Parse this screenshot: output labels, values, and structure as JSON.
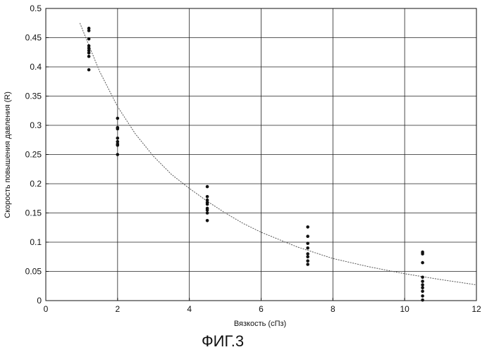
{
  "chart_data": {
    "type": "scatter",
    "xlabel": "Вязкость (сПз)",
    "ylabel": "Скорость повышения давления (R)",
    "xlim": [
      0,
      12
    ],
    "ylim": [
      0,
      0.5
    ],
    "x_ticks": [
      0,
      2,
      4,
      6,
      8,
      10,
      12
    ],
    "y_ticks": [
      0,
      0.05,
      0.1,
      0.15,
      0.2,
      0.25,
      0.3,
      0.35,
      0.4,
      0.45,
      0.5
    ],
    "grid": true,
    "series": [
      {
        "kind": "points",
        "x": [
          1.2,
          1.2,
          1.2,
          1.2,
          1.2,
          1.2,
          1.2,
          1.2,
          1.2,
          2.0,
          2.0,
          2.0,
          2.0,
          2.0,
          2.0,
          2.0,
          2.0,
          4.5,
          4.5,
          4.5,
          4.5,
          4.5,
          4.5,
          4.5,
          4.5,
          4.5,
          7.3,
          7.3,
          7.3,
          7.3,
          7.3,
          7.3,
          7.3,
          7.3,
          10.5,
          10.5,
          10.5,
          10.5,
          10.5,
          10.5,
          10.5,
          10.5,
          10.5,
          10.5
        ],
        "y": [
          0.466,
          0.462,
          0.448,
          0.436,
          0.432,
          0.428,
          0.424,
          0.418,
          0.395,
          0.312,
          0.296,
          0.294,
          0.278,
          0.272,
          0.268,
          0.266,
          0.25,
          0.195,
          0.178,
          0.172,
          0.168,
          0.165,
          0.158,
          0.155,
          0.15,
          0.137,
          0.126,
          0.11,
          0.098,
          0.09,
          0.08,
          0.075,
          0.068,
          0.062,
          0.083,
          0.08,
          0.065,
          0.04,
          0.033,
          0.027,
          0.022,
          0.016,
          0.008,
          0.001
        ],
        "color": "#111111"
      },
      {
        "kind": "fit",
        "x": [
          0.95,
          1.2,
          1.5,
          2.0,
          2.5,
          3.0,
          3.5,
          4.0,
          4.5,
          5.0,
          5.5,
          6.0,
          7.0,
          8.0,
          9.0,
          10.0,
          11.0,
          12.0
        ],
        "y": [
          0.475,
          0.437,
          0.392,
          0.332,
          0.285,
          0.247,
          0.216,
          0.192,
          0.17,
          0.15,
          0.132,
          0.117,
          0.092,
          0.072,
          0.058,
          0.046,
          0.036,
          0.027
        ],
        "color": "#555555"
      }
    ]
  },
  "caption": "ФИГ.3"
}
